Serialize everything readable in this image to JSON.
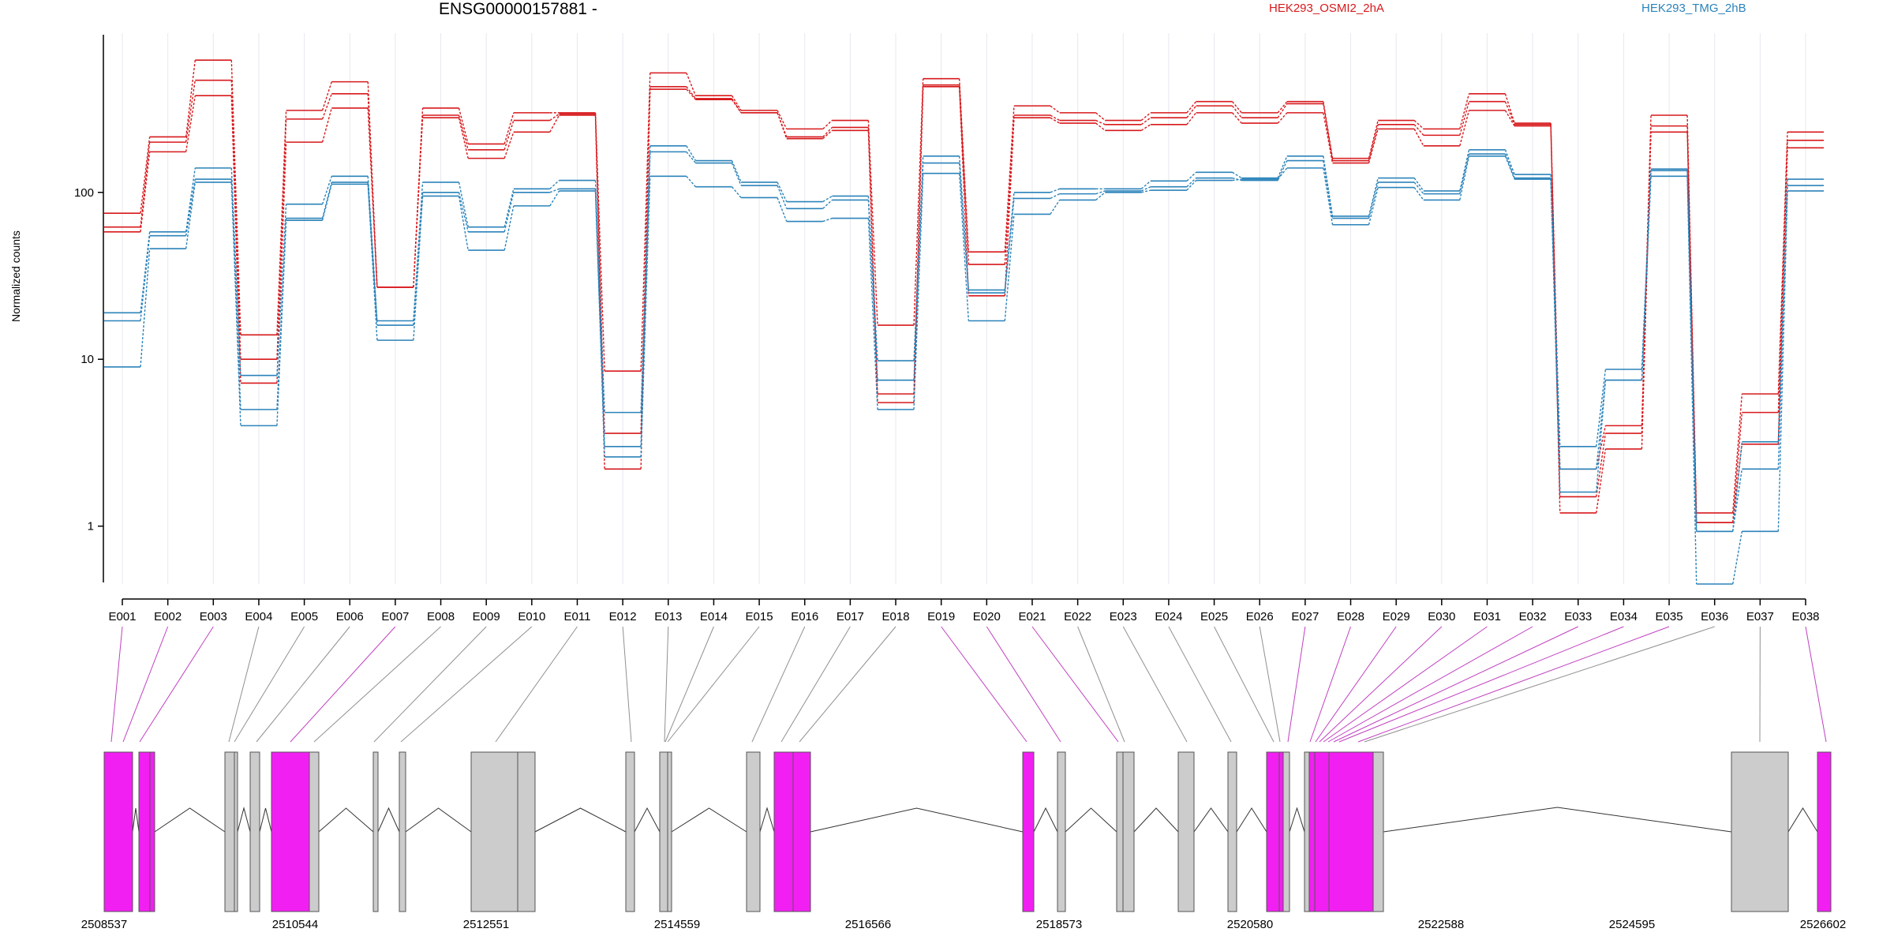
{
  "chart_data": {
    "type": "line",
    "title": "ENSG00000157881 -",
    "ylabel": "Normalized counts",
    "yscale": "log",
    "ylim": [
      0.45,
      900
    ],
    "yticks": [
      1,
      10,
      100
    ],
    "ytick_labels": [
      "1",
      "10",
      "100"
    ],
    "categories": [
      "E001",
      "E002",
      "E003",
      "E004",
      "E005",
      "E006",
      "E007",
      "E008",
      "E009",
      "E010",
      "E011",
      "E012",
      "E013",
      "E014",
      "E015",
      "E016",
      "E017",
      "E018",
      "E019",
      "E020",
      "E021",
      "E022",
      "E023",
      "E024",
      "E025",
      "E026",
      "E027",
      "E028",
      "E029",
      "E030",
      "E031",
      "E032",
      "E033",
      "E034",
      "E035",
      "E036",
      "E037",
      "E038"
    ],
    "legend": [
      {
        "label": "HEK293_OSMI2_2hA",
        "color": "#d7191c"
      },
      {
        "label": "HEK293_TMG_2hB",
        "color": "#2b83ba"
      }
    ],
    "series": [
      {
        "group": "HEK293_OSMI2_2hA",
        "color": "#d7191c",
        "values": [
          75,
          215,
          620,
          14,
          310,
          460,
          27,
          320,
          195,
          300,
          300,
          8.5,
          520,
          380,
          310,
          240,
          270,
          16,
          480,
          44,
          330,
          300,
          270,
          300,
          350,
          300,
          350,
          160,
          270,
          240,
          390,
          260,
          2.2,
          4.0,
          290,
          1.2,
          6.2,
          230
        ]
      },
      {
        "group": "HEK293_OSMI2_2hA",
        "color": "#d7191c",
        "values": [
          62,
          200,
          470,
          10,
          275,
          390,
          27,
          290,
          180,
          270,
          295,
          3.6,
          430,
          365,
          300,
          215,
          245,
          6.2,
          440,
          37,
          290,
          270,
          255,
          280,
          330,
          280,
          340,
          155,
          255,
          220,
          350,
          255,
          1.5,
          3.6,
          250,
          1.05,
          4.8,
          205
        ]
      },
      {
        "group": "HEK293_OSMI2_2hA",
        "color": "#d7191c",
        "values": [
          58,
          175,
          380,
          7.2,
          200,
          320,
          27,
          280,
          160,
          230,
          290,
          2.2,
          415,
          360,
          300,
          210,
          235,
          5.5,
          430,
          24,
          280,
          260,
          235,
          255,
          300,
          260,
          300,
          150,
          240,
          190,
          310,
          250,
          1.2,
          2.9,
          230,
          1.05,
          3.1,
          185
        ]
      },
      {
        "group": "HEK293_TMG_2hB",
        "color": "#2b83ba",
        "values": [
          19,
          58,
          140,
          8,
          85,
          125,
          17,
          115,
          62,
          105,
          118,
          4.8,
          190,
          155,
          115,
          88,
          95,
          9.8,
          165,
          26,
          100,
          105,
          105,
          117,
          132,
          122,
          165,
          72,
          122,
          102,
          180,
          128,
          3.0,
          8.7,
          138,
          0.93,
          3.2,
          120
        ]
      },
      {
        "group": "HEK293_TMG_2hB",
        "color": "#2b83ba",
        "values": [
          17,
          55,
          120,
          5,
          70,
          115,
          16,
          100,
          58,
          100,
          105,
          3.0,
          175,
          150,
          110,
          80,
          90,
          7.5,
          150,
          25,
          92,
          98,
          102,
          108,
          122,
          118,
          155,
          70,
          115,
          98,
          170,
          122,
          2.2,
          7.5,
          135,
          0.93,
          2.2,
          110
        ]
      },
      {
        "group": "HEK293_TMG_2hB",
        "color": "#2b83ba",
        "values": [
          9,
          46,
          115,
          4,
          68,
          112,
          13,
          95,
          45,
          83,
          102,
          2.6,
          125,
          108,
          93,
          67,
          70,
          5.0,
          130,
          17,
          74,
          90,
          100,
          103,
          118,
          120,
          140,
          64,
          107,
          90,
          165,
          120,
          1.6,
          7.5,
          125,
          0.45,
          0.93,
          102
        ]
      }
    ],
    "genomic_axis_labels": [
      "2508537",
      "2510544",
      "2512551",
      "2514559",
      "2516566",
      "2518573",
      "2520580",
      "2522588",
      "2524595",
      "2526602"
    ],
    "exon_tracks": [
      {
        "label": "E001",
        "highlight": true
      },
      {
        "label": "E002",
        "highlight": true
      },
      {
        "label": "E003",
        "highlight": true
      },
      {
        "label": "E004",
        "highlight": false
      },
      {
        "label": "E005",
        "highlight": false
      },
      {
        "label": "E006",
        "highlight": false
      },
      {
        "label": "E007",
        "highlight": true
      },
      {
        "label": "E008",
        "highlight": false
      },
      {
        "label": "E009",
        "highlight": false
      },
      {
        "label": "E010",
        "highlight": false
      },
      {
        "label": "E011",
        "highlight": false
      },
      {
        "label": "E012",
        "highlight": false
      },
      {
        "label": "E013",
        "highlight": false
      },
      {
        "label": "E014",
        "highlight": false
      },
      {
        "label": "E015",
        "highlight": false
      },
      {
        "label": "E016",
        "highlight": false
      },
      {
        "label": "E017",
        "highlight": false
      },
      {
        "label": "E018",
        "highlight": false
      },
      {
        "label": "E019",
        "highlight": true
      },
      {
        "label": "E020",
        "highlight": true
      },
      {
        "label": "E021",
        "highlight": true
      },
      {
        "label": "E022",
        "highlight": false
      },
      {
        "label": "E023",
        "highlight": false
      },
      {
        "label": "E024",
        "highlight": false
      },
      {
        "label": "E025",
        "highlight": false
      },
      {
        "label": "E026",
        "highlight": false
      },
      {
        "label": "E027",
        "highlight": true
      },
      {
        "label": "E028",
        "highlight": true
      },
      {
        "label": "E029",
        "highlight": true
      },
      {
        "label": "E030",
        "highlight": true
      },
      {
        "label": "E031",
        "highlight": true
      },
      {
        "label": "E032",
        "highlight": true
      },
      {
        "label": "E033",
        "highlight": true
      },
      {
        "label": "E034",
        "highlight": true
      },
      {
        "label": "E035",
        "highlight": true
      },
      {
        "label": "E036",
        "highlight": false
      },
      {
        "label": "E037",
        "highlight": false
      },
      {
        "label": "E038",
        "highlight": true
      }
    ],
    "colors": {
      "highlight_exon": "#f21ff2",
      "plain_exon": "#cccccc",
      "intron_line": "#333333",
      "grid": "#e8e8f0"
    }
  }
}
